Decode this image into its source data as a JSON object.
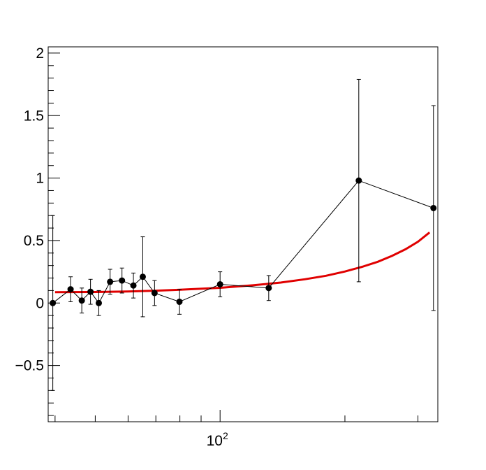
{
  "chart_data": {
    "type": "scatter",
    "x_scale": "log",
    "xlim": [
      38.5,
      335
    ],
    "ylim": [
      -0.95,
      2.05
    ],
    "x_tick_labels": [
      {
        "x": 100,
        "base": "10",
        "exp": "2"
      }
    ],
    "x_minor_ticks": [
      40,
      50,
      60,
      70,
      80,
      90,
      200,
      300
    ],
    "y_ticks": [
      -0.5,
      0,
      0.5,
      1,
      1.5,
      2
    ],
    "y_tick_labels": [
      "−0.5",
      "0",
      "0.5",
      "1",
      "1.5",
      "2"
    ],
    "y_minor_step": 0.1,
    "grid": false,
    "series": [
      {
        "style": "points-with-errors-connected",
        "color": "#000000",
        "points": [
          {
            "x": 39.5,
            "y": 0.0,
            "err": 0.7
          },
          {
            "x": 43.6,
            "y": 0.11,
            "err": 0.1
          },
          {
            "x": 46.4,
            "y": 0.02,
            "err": 0.1
          },
          {
            "x": 48.7,
            "y": 0.09,
            "err": 0.1
          },
          {
            "x": 51.0,
            "y": 0.0,
            "err": 0.1
          },
          {
            "x": 54.3,
            "y": 0.17,
            "err": 0.1
          },
          {
            "x": 58.0,
            "y": 0.18,
            "err": 0.1
          },
          {
            "x": 61.8,
            "y": 0.14,
            "err": 0.1
          },
          {
            "x": 65.1,
            "y": 0.21,
            "err": 0.32
          },
          {
            "x": 69.5,
            "y": 0.08,
            "err": 0.1
          },
          {
            "x": 79.8,
            "y": 0.01,
            "err": 0.1
          },
          {
            "x": 100.0,
            "y": 0.15,
            "err": 0.1
          },
          {
            "x": 131.0,
            "y": 0.12,
            "err": 0.1
          },
          {
            "x": 216.0,
            "y": 0.98,
            "err": 0.81
          },
          {
            "x": 327.0,
            "y": 0.76,
            "err": 0.82
          }
        ]
      },
      {
        "style": "curve",
        "color": "#e00000",
        "points": [
          {
            "x": 40,
            "y": 0.087
          },
          {
            "x": 50,
            "y": 0.088
          },
          {
            "x": 60,
            "y": 0.093
          },
          {
            "x": 70,
            "y": 0.099
          },
          {
            "x": 80,
            "y": 0.106
          },
          {
            "x": 100,
            "y": 0.122
          },
          {
            "x": 120,
            "y": 0.142
          },
          {
            "x": 140,
            "y": 0.164
          },
          {
            "x": 160,
            "y": 0.19
          },
          {
            "x": 180,
            "y": 0.218
          },
          {
            "x": 200,
            "y": 0.252
          },
          {
            "x": 220,
            "y": 0.29
          },
          {
            "x": 240,
            "y": 0.33
          },
          {
            "x": 260,
            "y": 0.378
          },
          {
            "x": 280,
            "y": 0.43
          },
          {
            "x": 300,
            "y": 0.49
          },
          {
            "x": 320,
            "y": 0.565
          }
        ]
      }
    ]
  }
}
